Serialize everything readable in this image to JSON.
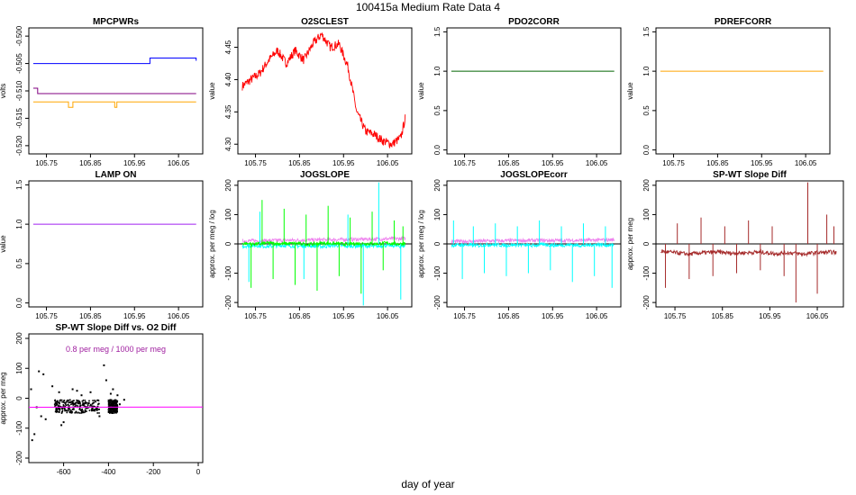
{
  "figure": {
    "title": "100415a   Medium Rate Data 4",
    "xlabel": "day of year"
  },
  "chart_data": [
    {
      "id": "mpcpwrs",
      "type": "line",
      "title": "MPCPWRs",
      "ylabel": "volts",
      "xlim": [
        105.71,
        106.105
      ],
      "ylim": [
        -0.5215,
        -0.4985
      ],
      "xticks": [
        105.75,
        105.85,
        105.95,
        106.05
      ],
      "xtick_labels": [
        "105.75",
        "105.85",
        "105.95",
        "106.05"
      ],
      "yticks": [
        -0.52,
        -0.515,
        -0.51,
        -0.505,
        -0.5
      ],
      "ytick_labels": [
        "-0.520",
        "-0.515",
        "-0.510",
        "-0.505",
        "-0.500"
      ],
      "series": [
        {
          "color": "#0000ff",
          "x": [
            105.72,
            105.98,
            105.985,
            106.08,
            106.09
          ],
          "y": [
            -0.505,
            -0.505,
            -0.504,
            -0.504,
            -0.5045
          ]
        },
        {
          "color": "#800080",
          "x": [
            105.72,
            105.73,
            105.74,
            106.09
          ],
          "y": [
            -0.5095,
            -0.5105,
            -0.5105,
            -0.5105
          ]
        },
        {
          "color": "#ffa500",
          "x": [
            105.72,
            105.79,
            105.8,
            105.81,
            105.9,
            105.905,
            105.91,
            106.09
          ],
          "y": [
            -0.512,
            -0.512,
            -0.513,
            -0.512,
            -0.512,
            -0.513,
            -0.512,
            -0.512
          ]
        }
      ]
    },
    {
      "id": "o2sclest",
      "type": "line",
      "title": "O2SCLEST",
      "ylabel": "value",
      "xlim": [
        105.71,
        106.105
      ],
      "ylim": [
        4.285,
        4.48
      ],
      "xticks": [
        105.75,
        105.85,
        105.95,
        106.05
      ],
      "xtick_labels": [
        "105.75",
        "105.85",
        "105.95",
        "106.05"
      ],
      "yticks": [
        4.3,
        4.35,
        4.4,
        4.45
      ],
      "ytick_labels": [
        "4.30",
        "4.35",
        "4.40",
        "4.45"
      ],
      "series": [
        {
          "color": "#ff0000",
          "x": [
            105.72,
            105.74,
            105.76,
            105.78,
            105.8,
            105.82,
            105.84,
            105.86,
            105.88,
            105.9,
            105.92,
            105.94,
            105.96,
            105.98,
            106.0,
            106.02,
            106.04,
            106.06,
            106.08,
            106.09
          ],
          "y": [
            4.39,
            4.4,
            4.41,
            4.43,
            4.445,
            4.425,
            4.445,
            4.43,
            4.455,
            4.47,
            4.45,
            4.455,
            4.42,
            4.35,
            4.32,
            4.315,
            4.305,
            4.3,
            4.31,
            4.34
          ]
        }
      ]
    },
    {
      "id": "pdo2corr",
      "type": "line",
      "title": "PDO2CORR",
      "ylabel": "value",
      "xlim": [
        105.71,
        106.105
      ],
      "ylim": [
        -0.05,
        1.55
      ],
      "xticks": [
        105.75,
        105.85,
        105.95,
        106.05
      ],
      "xtick_labels": [
        "105.75",
        "105.85",
        "105.95",
        "106.05"
      ],
      "yticks": [
        0,
        0.5,
        1,
        1.5
      ],
      "ytick_labels": [
        "0.0",
        "0.5",
        "1.0",
        "1.5"
      ],
      "series": [
        {
          "color": "#006400",
          "x": [
            105.72,
            106.09
          ],
          "y": [
            1,
            1
          ]
        }
      ]
    },
    {
      "id": "pdrefcorr",
      "type": "line",
      "title": "PDREFCORR",
      "ylabel": "value",
      "xlim": [
        105.71,
        106.105
      ],
      "ylim": [
        -0.05,
        1.55
      ],
      "xticks": [
        105.75,
        105.85,
        105.95,
        106.05
      ],
      "xtick_labels": [
        "105.75",
        "105.85",
        "105.95",
        "106.05"
      ],
      "yticks": [
        0,
        0.5,
        1,
        1.5
      ],
      "ytick_labels": [
        "0.0",
        "0.5",
        "1.0",
        "1.5"
      ],
      "series": [
        {
          "color": "#ffa500",
          "x": [
            105.72,
            106.09
          ],
          "y": [
            1,
            1
          ]
        }
      ]
    },
    {
      "id": "lampon",
      "type": "line",
      "title": "LAMP ON",
      "ylabel": "value",
      "xlim": [
        105.71,
        106.105
      ],
      "ylim": [
        -0.05,
        1.55
      ],
      "xticks": [
        105.75,
        105.85,
        105.95,
        106.05
      ],
      "xtick_labels": [
        "105.75",
        "105.85",
        "105.95",
        "106.05"
      ],
      "yticks": [
        0,
        0.5,
        1,
        1.5
      ],
      "ytick_labels": [
        "0.0",
        "0.5",
        "1.0",
        "1.5"
      ],
      "series": [
        {
          "color": "#a020f0",
          "x": [
            105.72,
            106.09
          ],
          "y": [
            1,
            1
          ]
        }
      ]
    },
    {
      "id": "jogslope",
      "type": "line",
      "title": "JOGSLOPE",
      "ylabel": "approx. per meg / log",
      "xlim": [
        105.71,
        106.105
      ],
      "ylim": [
        -215,
        215
      ],
      "xticks": [
        105.75,
        105.85,
        105.95,
        106.05
      ],
      "xtick_labels": [
        "105.75",
        "105.85",
        "105.95",
        "106.05"
      ],
      "yticks": [
        -200,
        -100,
        0,
        100,
        200
      ],
      "ytick_labels": [
        "-200",
        "-100",
        "0",
        "100",
        "200"
      ],
      "baseline": 0,
      "series": [
        {
          "color": "#ee82ee",
          "x": [
            105.72,
            105.8,
            105.9,
            106.0,
            106.09
          ],
          "y": [
            10,
            12,
            14,
            16,
            18
          ]
        },
        {
          "color": "#00ffff",
          "x": [
            105.72,
            105.75,
            105.78,
            105.81,
            105.84,
            105.87,
            105.9,
            105.93,
            105.96,
            105.99,
            106.02,
            106.05,
            106.08,
            106.09
          ],
          "y": [
            -8,
            -6,
            -9,
            -5,
            -8,
            -6,
            -9,
            -5,
            -8,
            -6,
            -9,
            -5,
            -8,
            -6
          ]
        },
        {
          "color": "#00ff00",
          "x": [
            105.72,
            105.75,
            105.78,
            105.81,
            105.84,
            105.87,
            105.9,
            105.93,
            105.96,
            105.99,
            106.02,
            106.05,
            106.08,
            106.09
          ],
          "y": [
            2,
            -1,
            3,
            0,
            2,
            -2,
            3,
            1,
            -1,
            2,
            0,
            3,
            -1,
            2
          ]
        }
      ],
      "spikes": [
        {
          "color": "#00ff00",
          "x": [
            105.74,
            105.765,
            105.79,
            105.815,
            105.84,
            105.865,
            105.89,
            105.915,
            105.94,
            105.965,
            105.99,
            106.015,
            106.04,
            106.065,
            106.085
          ],
          "y": [
            -150,
            150,
            -120,
            120,
            -140,
            100,
            -160,
            130,
            -110,
            90,
            -170,
            110,
            -90,
            80,
            60
          ]
        },
        {
          "color": "#00ffff",
          "x": [
            105.735,
            105.76,
            105.86,
            105.96,
            105.995,
            106.03,
            106.08
          ],
          "y": [
            -130,
            110,
            -120,
            100,
            -210,
            210,
            -190
          ]
        }
      ]
    },
    {
      "id": "jogslopecorr",
      "type": "line",
      "title": "JOGSLOPEcorr",
      "ylabel": "approx. per meg / log",
      "xlim": [
        105.71,
        106.105
      ],
      "ylim": [
        -215,
        215
      ],
      "xticks": [
        105.75,
        105.85,
        105.95,
        106.05
      ],
      "xtick_labels": [
        "105.75",
        "105.85",
        "105.95",
        "106.05"
      ],
      "yticks": [
        -200,
        -100,
        0,
        100,
        200
      ],
      "ytick_labels": [
        "-200",
        "-100",
        "0",
        "100",
        "200"
      ],
      "baseline": 0,
      "series": [
        {
          "color": "#ee82ee",
          "x": [
            105.72,
            105.8,
            105.9,
            106.0,
            106.09
          ],
          "y": [
            8,
            10,
            12,
            12,
            14
          ]
        },
        {
          "color": "#00ffff",
          "x": [
            105.72,
            105.75,
            105.78,
            105.81,
            105.84,
            105.87,
            105.9,
            105.93,
            105.96,
            105.99,
            106.02,
            106.05,
            106.08,
            106.09
          ],
          "y": [
            -5,
            -3,
            -6,
            -2,
            -5,
            -3,
            -6,
            -2,
            -5,
            -3,
            -6,
            -2,
            -5,
            -3
          ]
        }
      ],
      "spikes": [
        {
          "color": "#00ffff",
          "x": [
            105.725,
            105.745,
            105.77,
            105.795,
            105.82,
            105.845,
            105.87,
            105.895,
            105.92,
            105.945,
            105.97,
            105.995,
            106.02,
            106.045,
            106.07,
            106.085
          ],
          "y": [
            80,
            -120,
            60,
            -100,
            70,
            -110,
            60,
            -100,
            80,
            -90,
            60,
            -130,
            70,
            -110,
            60,
            -150
          ]
        }
      ]
    },
    {
      "id": "spwtslopediff",
      "type": "line",
      "title": "SP-WT Slope Diff",
      "ylabel": "approx. per meg",
      "xlim": [
        105.71,
        106.105
      ],
      "ylim": [
        -215,
        215
      ],
      "xticks": [
        105.75,
        105.85,
        105.95,
        106.05
      ],
      "xtick_labels": [
        "105.75",
        "105.85",
        "105.95",
        "106.05"
      ],
      "yticks": [
        -200,
        -100,
        0,
        100,
        200
      ],
      "ytick_labels": [
        "-200",
        "-100",
        "0",
        "100",
        "200"
      ],
      "baseline": 0,
      "series": [
        {
          "color": "#a52a2a",
          "x": [
            105.72,
            105.75,
            105.78,
            105.81,
            105.84,
            105.87,
            105.9,
            105.93,
            105.96,
            105.99,
            106.02,
            106.05,
            106.08,
            106.09
          ],
          "y": [
            -25,
            -30,
            -35,
            -30,
            -28,
            -32,
            -30,
            -28,
            -33,
            -30,
            -35,
            -30,
            -28,
            -30
          ]
        }
      ],
      "spikes": [
        {
          "color": "#a52a2a",
          "x": [
            105.73,
            105.755,
            105.78,
            105.805,
            105.83,
            105.855,
            105.88,
            105.905,
            105.93,
            105.955,
            105.98,
            106.005,
            106.03,
            106.05,
            106.07,
            106.085
          ],
          "y": [
            -150,
            70,
            -120,
            90,
            -110,
            60,
            -100,
            80,
            -90,
            60,
            -110,
            -200,
            210,
            -170,
            100,
            60
          ]
        }
      ]
    },
    {
      "id": "spwtvso2diff",
      "type": "scatter",
      "title": "SP-WT Slope Diff vs. O2 Diff",
      "ylabel": "approx. per meg",
      "annotation": "0.8 per meg / 1000 per meg",
      "xlim": [
        -755,
        20
      ],
      "ylim": [
        -215,
        215
      ],
      "xticks": [
        -600,
        -400,
        -200,
        0
      ],
      "xtick_labels": [
        "-600",
        "-400",
        "-200",
        "0"
      ],
      "yticks": [
        -200,
        -100,
        0,
        100,
        200
      ],
      "ytick_labels": [
        "-200",
        "-100",
        "0",
        "100",
        "200"
      ],
      "fit_line": {
        "color": "#ff00ff",
        "x": [
          -755,
          20
        ],
        "y": [
          -30,
          -29.4
        ]
      },
      "cluster": {
        "color": "#000000",
        "x_ranges": [
          [
            -640,
            -440
          ],
          [
            -400,
            -360
          ]
        ],
        "y_range": [
          -50,
          -5
        ]
      },
      "points": {
        "color": "#000000",
        "x": [
          -740,
          -745,
          -710,
          -690,
          -700,
          -650,
          -620,
          -600,
          -560,
          -520,
          -480,
          -440,
          -420,
          -380,
          -360,
          -330,
          -720,
          -680,
          -610,
          -540,
          -470,
          -410,
          -390,
          -350,
          -730
        ],
        "y": [
          -140,
          30,
          90,
          80,
          -60,
          40,
          20,
          -80,
          30,
          10,
          20,
          -60,
          110,
          30,
          10,
          -5,
          -30,
          -70,
          -90,
          25,
          -40,
          60,
          15,
          -20,
          -120
        ]
      }
    }
  ]
}
